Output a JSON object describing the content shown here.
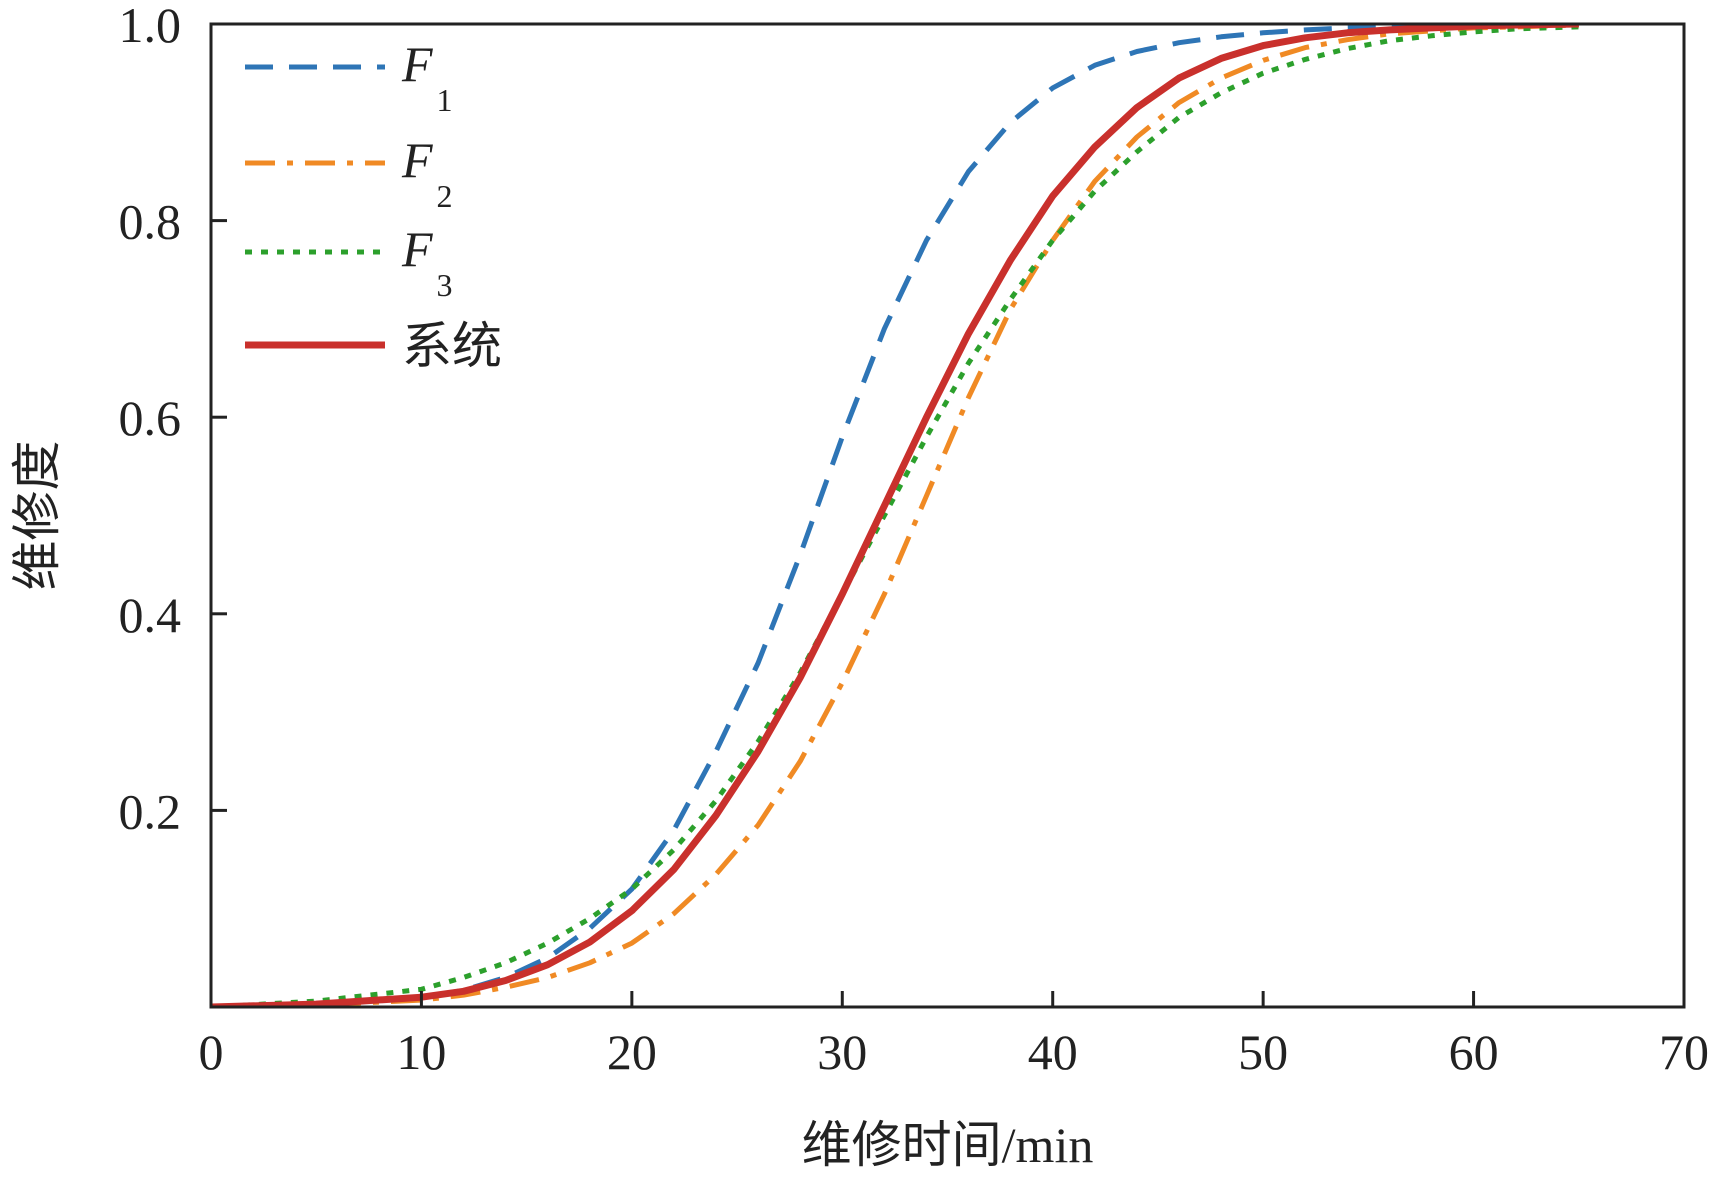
{
  "chart_data": {
    "type": "line",
    "xlabel": "维修时间/min",
    "ylabel": "维修度",
    "xlim": [
      0,
      70
    ],
    "ylim": [
      0,
      1.0
    ],
    "xticks": [
      0,
      10,
      20,
      30,
      40,
      50,
      60,
      70
    ],
    "yticks": [
      0.2,
      0.4,
      0.6,
      0.8,
      1.0
    ],
    "xtick_labels": [
      "0",
      "10",
      "20",
      "30",
      "40",
      "50",
      "60",
      "70"
    ],
    "ytick_labels": [
      "0.2",
      "0.4",
      "0.6",
      "0.8",
      "1.0"
    ],
    "grid": false,
    "legend_position": "top-left",
    "series": [
      {
        "name": "F1",
        "name_main": "F",
        "name_sub": "1",
        "color": "#2e75b6",
        "dash": "dashed",
        "x": [
          0,
          5,
          10,
          12,
          14,
          16,
          18,
          20,
          22,
          24,
          26,
          28,
          30,
          32,
          34,
          36,
          38,
          40,
          42,
          44,
          46,
          48,
          50,
          52,
          54,
          56,
          58,
          60,
          62,
          65
        ],
        "y": [
          0.0,
          0.003,
          0.01,
          0.017,
          0.03,
          0.05,
          0.08,
          0.12,
          0.18,
          0.26,
          0.35,
          0.46,
          0.58,
          0.69,
          0.78,
          0.85,
          0.9,
          0.935,
          0.958,
          0.972,
          0.981,
          0.987,
          0.991,
          0.994,
          0.996,
          0.997,
          0.998,
          0.999,
          0.999,
          1.0
        ]
      },
      {
        "name": "F2",
        "name_main": "F",
        "name_sub": "2",
        "color": "#f08a24",
        "dash": "dashdot",
        "x": [
          0,
          5,
          10,
          12,
          14,
          16,
          18,
          20,
          22,
          24,
          26,
          28,
          30,
          32,
          34,
          36,
          38,
          40,
          42,
          44,
          46,
          48,
          50,
          52,
          54,
          56,
          58,
          60,
          62,
          65
        ],
        "y": [
          0.0,
          0.002,
          0.007,
          0.012,
          0.02,
          0.03,
          0.045,
          0.065,
          0.095,
          0.135,
          0.185,
          0.25,
          0.33,
          0.42,
          0.52,
          0.62,
          0.71,
          0.78,
          0.84,
          0.885,
          0.92,
          0.945,
          0.963,
          0.976,
          0.984,
          0.99,
          0.993,
          0.996,
          0.997,
          0.999
        ]
      },
      {
        "name": "F3",
        "name_main": "F",
        "name_sub": "3",
        "color": "#2ca02c",
        "dash": "dotted",
        "x": [
          0,
          5,
          10,
          12,
          14,
          16,
          18,
          20,
          22,
          24,
          26,
          28,
          30,
          32,
          34,
          36,
          38,
          40,
          42,
          44,
          46,
          48,
          50,
          52,
          54,
          56,
          58,
          60,
          62,
          65
        ],
        "y": [
          0.0,
          0.006,
          0.018,
          0.03,
          0.045,
          0.065,
          0.09,
          0.12,
          0.16,
          0.21,
          0.27,
          0.34,
          0.42,
          0.5,
          0.58,
          0.655,
          0.72,
          0.78,
          0.83,
          0.87,
          0.905,
          0.93,
          0.95,
          0.964,
          0.975,
          0.983,
          0.988,
          0.992,
          0.995,
          0.997
        ]
      },
      {
        "name": "系统",
        "name_main": "系统",
        "name_sub": "",
        "color": "#c9302c",
        "dash": "solid",
        "x": [
          0,
          5,
          10,
          12,
          14,
          16,
          18,
          20,
          22,
          24,
          26,
          28,
          30,
          32,
          34,
          36,
          38,
          40,
          42,
          44,
          46,
          48,
          50,
          52,
          54,
          56,
          58,
          60,
          62,
          65
        ],
        "y": [
          0.0,
          0.003,
          0.01,
          0.016,
          0.027,
          0.043,
          0.066,
          0.098,
          0.14,
          0.195,
          0.26,
          0.335,
          0.42,
          0.51,
          0.6,
          0.685,
          0.76,
          0.825,
          0.875,
          0.915,
          0.945,
          0.965,
          0.978,
          0.986,
          0.991,
          0.994,
          0.996,
          0.998,
          0.999,
          1.0
        ]
      }
    ]
  }
}
